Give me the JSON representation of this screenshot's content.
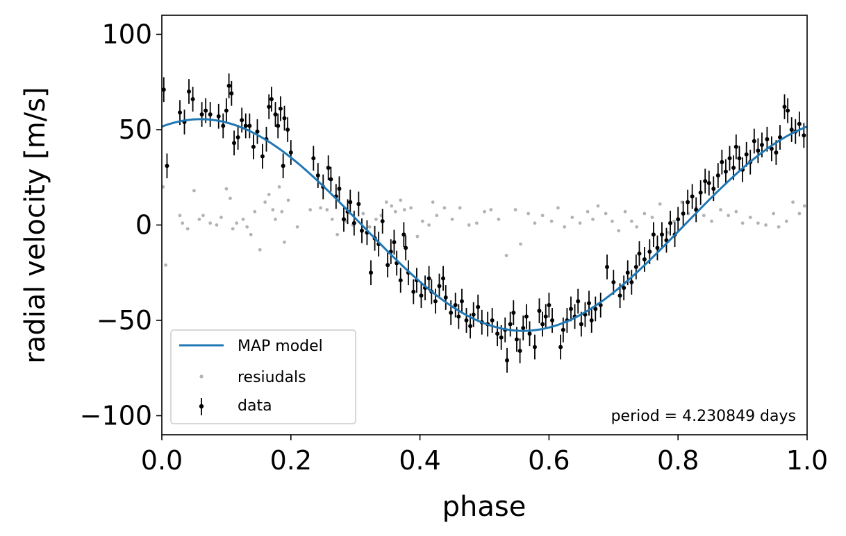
{
  "chart_data": {
    "type": "scatter",
    "xlabel": "phase",
    "ylabel": "radial velocity [m/s]",
    "xlim": [
      0.0,
      1.0
    ],
    "ylim": [
      -110,
      110
    ],
    "x_ticks": [
      0.0,
      0.2,
      0.4,
      0.6,
      0.8,
      1.0
    ],
    "x_tick_labels": [
      "0.0",
      "0.2",
      "0.4",
      "0.6",
      "0.8",
      "1.0"
    ],
    "y_ticks": [
      100,
      50,
      0,
      -50,
      -100
    ],
    "y_tick_labels": [
      "100",
      "50",
      "0",
      "−50",
      "−100"
    ],
    "grid": false,
    "legend_position": "lower-left",
    "annotation": "period = 4.230849 days",
    "model": {
      "name": "MAP model",
      "color": "#1f77b4",
      "amplitude": 55.5,
      "phase_of_max": 0.06
    },
    "series": [
      {
        "name": "data",
        "color": "#000000",
        "kind": "errorbar",
        "points": [
          [
            0.003,
            71.0
          ],
          [
            0.008,
            31.0
          ],
          [
            0.028,
            59.0
          ],
          [
            0.035,
            54.0
          ],
          [
            0.042,
            70.0
          ],
          [
            0.048,
            66.0
          ],
          [
            0.062,
            58.0
          ],
          [
            0.068,
            60.0
          ],
          [
            0.075,
            58.0
          ],
          [
            0.088,
            57.0
          ],
          [
            0.095,
            52.0
          ],
          [
            0.1,
            60.0
          ],
          [
            0.104,
            73.0
          ],
          [
            0.108,
            69.0
          ],
          [
            0.112,
            43.0
          ],
          [
            0.118,
            46.0
          ],
          [
            0.124,
            55.0
          ],
          [
            0.13,
            52.0
          ],
          [
            0.136,
            52.0
          ],
          [
            0.142,
            41.0
          ],
          [
            0.148,
            49.0
          ],
          [
            0.156,
            36.0
          ],
          [
            0.162,
            45.0
          ],
          [
            0.166,
            62.0
          ],
          [
            0.17,
            66.0
          ],
          [
            0.176,
            58.0
          ],
          [
            0.18,
            52.0
          ],
          [
            0.184,
            61.0
          ],
          [
            0.188,
            31.0
          ],
          [
            0.19,
            56.0
          ],
          [
            0.195,
            50.0
          ],
          [
            0.2,
            38.0
          ],
          [
            0.235,
            35.0
          ],
          [
            0.242,
            26.0
          ],
          [
            0.25,
            20.0
          ],
          [
            0.258,
            30.0
          ],
          [
            0.262,
            24.0
          ],
          [
            0.27,
            15.0
          ],
          [
            0.275,
            19.0
          ],
          [
            0.282,
            3.0
          ],
          [
            0.288,
            7.0
          ],
          [
            0.292,
            12.0
          ],
          [
            0.298,
            1.0
          ],
          [
            0.305,
            11.0
          ],
          [
            0.31,
            -3.0
          ],
          [
            0.318,
            -4.0
          ],
          [
            0.324,
            -25.0
          ],
          [
            0.33,
            -7.0
          ],
          [
            0.336,
            -10.0
          ],
          [
            0.342,
            2.0
          ],
          [
            0.35,
            -21.0
          ],
          [
            0.355,
            -14.0
          ],
          [
            0.36,
            -9.0
          ],
          [
            0.364,
            -20.0
          ],
          [
            0.37,
            -29.0
          ],
          [
            0.375,
            -5.0
          ],
          [
            0.378,
            -12.0
          ],
          [
            0.382,
            -25.0
          ],
          [
            0.39,
            -35.0
          ],
          [
            0.395,
            -29.0
          ],
          [
            0.402,
            -37.0
          ],
          [
            0.408,
            -33.0
          ],
          [
            0.414,
            -28.0
          ],
          [
            0.418,
            -35.0
          ],
          [
            0.424,
            -40.0
          ],
          [
            0.43,
            -32.0
          ],
          [
            0.436,
            -28.0
          ],
          [
            0.44,
            -38.0
          ],
          [
            0.448,
            -46.0
          ],
          [
            0.455,
            -42.0
          ],
          [
            0.46,
            -48.0
          ],
          [
            0.465,
            -40.0
          ],
          [
            0.472,
            -50.0
          ],
          [
            0.478,
            -53.0
          ],
          [
            0.483,
            -47.0
          ],
          [
            0.49,
            -43.0
          ],
          [
            0.496,
            -51.0
          ],
          [
            0.505,
            -52.0
          ],
          [
            0.512,
            -50.0
          ],
          [
            0.52,
            -57.0
          ],
          [
            0.526,
            -59.0
          ],
          [
            0.532,
            -55.0
          ],
          [
            0.535,
            -71.0
          ],
          [
            0.54,
            -52.0
          ],
          [
            0.545,
            -46.0
          ],
          [
            0.55,
            -60.0
          ],
          [
            0.555,
            -66.0
          ],
          [
            0.56,
            -54.0
          ],
          [
            0.565,
            -48.0
          ],
          [
            0.57,
            -57.0
          ],
          [
            0.578,
            -64.0
          ],
          [
            0.585,
            -45.0
          ],
          [
            0.59,
            -52.0
          ],
          [
            0.595,
            -48.0
          ],
          [
            0.6,
            -42.0
          ],
          [
            0.605,
            -50.0
          ],
          [
            0.618,
            -64.0
          ],
          [
            0.622,
            -55.0
          ],
          [
            0.628,
            -50.0
          ],
          [
            0.634,
            -44.0
          ],
          [
            0.64,
            -48.0
          ],
          [
            0.645,
            -40.0
          ],
          [
            0.65,
            -52.0
          ],
          [
            0.656,
            -47.0
          ],
          [
            0.662,
            -41.0
          ],
          [
            0.666,
            -50.0
          ],
          [
            0.672,
            -44.0
          ],
          [
            0.68,
            -42.0
          ],
          [
            0.69,
            -22.0
          ],
          [
            0.7,
            -30.0
          ],
          [
            0.71,
            -37.0
          ],
          [
            0.716,
            -33.0
          ],
          [
            0.722,
            -25.0
          ],
          [
            0.728,
            -30.0
          ],
          [
            0.735,
            -22.0
          ],
          [
            0.74,
            -15.0
          ],
          [
            0.748,
            -18.0
          ],
          [
            0.756,
            -14.0
          ],
          [
            0.762,
            -5.0
          ],
          [
            0.768,
            -12.0
          ],
          [
            0.775,
            -5.0
          ],
          [
            0.782,
            -8.0
          ],
          [
            0.788,
            1.0
          ],
          [
            0.795,
            -5.0
          ],
          [
            0.8,
            3.0
          ],
          [
            0.808,
            6.0
          ],
          [
            0.815,
            12.0
          ],
          [
            0.822,
            15.0
          ],
          [
            0.828,
            8.0
          ],
          [
            0.835,
            17.0
          ],
          [
            0.842,
            23.0
          ],
          [
            0.848,
            22.0
          ],
          [
            0.855,
            19.0
          ],
          [
            0.862,
            26.0
          ],
          [
            0.868,
            33.0
          ],
          [
            0.874,
            28.0
          ],
          [
            0.88,
            35.0
          ],
          [
            0.886,
            30.0
          ],
          [
            0.89,
            41.0
          ],
          [
            0.895,
            35.0
          ],
          [
            0.9,
            29.0
          ],
          [
            0.906,
            37.0
          ],
          [
            0.912,
            33.0
          ],
          [
            0.918,
            44.0
          ],
          [
            0.924,
            39.0
          ],
          [
            0.93,
            42.0
          ],
          [
            0.938,
            45.0
          ],
          [
            0.945,
            40.0
          ],
          [
            0.952,
            38.0
          ],
          [
            0.958,
            46.0
          ],
          [
            0.965,
            62.0
          ],
          [
            0.97,
            60.0
          ],
          [
            0.976,
            50.0
          ],
          [
            0.982,
            49.0
          ],
          [
            0.988,
            53.0
          ],
          [
            0.995,
            47.0
          ]
        ],
        "yerr": 6.5
      },
      {
        "name": "resiudals",
        "color": "#999999",
        "kind": "scatter",
        "points": [
          [
            0.002,
            20.0
          ],
          [
            0.006,
            -21.0
          ],
          [
            0.028,
            5.0
          ],
          [
            0.032,
            1.0
          ],
          [
            0.04,
            -2.0
          ],
          [
            0.05,
            18.0
          ],
          [
            0.058,
            3.0
          ],
          [
            0.064,
            5.0
          ],
          [
            0.075,
            1.0
          ],
          [
            0.085,
            0.0
          ],
          [
            0.092,
            4.0
          ],
          [
            0.1,
            19.0
          ],
          [
            0.106,
            14.0
          ],
          [
            0.11,
            -2.0
          ],
          [
            0.116,
            1.0
          ],
          [
            0.126,
            3.0
          ],
          [
            0.132,
            -1.0
          ],
          [
            0.138,
            -5.0
          ],
          [
            0.144,
            7.0
          ],
          [
            0.152,
            -13.0
          ],
          [
            0.16,
            12.0
          ],
          [
            0.166,
            16.0
          ],
          [
            0.172,
            8.0
          ],
          [
            0.176,
            3.0
          ],
          [
            0.182,
            20.0
          ],
          [
            0.186,
            7.0
          ],
          [
            0.19,
            -9.0
          ],
          [
            0.196,
            13.0
          ],
          [
            0.21,
            -1.0
          ],
          [
            0.23,
            8.0
          ],
          [
            0.246,
            9.0
          ],
          [
            0.256,
            8.0
          ],
          [
            0.264,
            3.0
          ],
          [
            0.272,
            -5.0
          ],
          [
            0.286,
            2.0
          ],
          [
            0.296,
            0.0
          ],
          [
            0.312,
            6.0
          ],
          [
            0.322,
            -1.0
          ],
          [
            0.332,
            3.0
          ],
          [
            0.34,
            5.0
          ],
          [
            0.348,
            12.0
          ],
          [
            0.356,
            10.0
          ],
          [
            0.362,
            7.0
          ],
          [
            0.37,
            13.0
          ],
          [
            0.376,
            8.0
          ],
          [
            0.386,
            9.0
          ],
          [
            0.396,
            -6.0
          ],
          [
            0.404,
            2.0
          ],
          [
            0.414,
            0.0
          ],
          [
            0.42,
            12.0
          ],
          [
            0.426,
            5.0
          ],
          [
            0.438,
            9.0
          ],
          [
            0.45,
            3.0
          ],
          [
            0.462,
            9.0
          ],
          [
            0.476,
            0.0
          ],
          [
            0.488,
            1.0
          ],
          [
            0.5,
            7.0
          ],
          [
            0.51,
            8.0
          ],
          [
            0.522,
            3.0
          ],
          [
            0.534,
            -16.0
          ],
          [
            0.548,
            8.0
          ],
          [
            0.556,
            -10.0
          ],
          [
            0.568,
            6.0
          ],
          [
            0.578,
            1.0
          ],
          [
            0.59,
            5.0
          ],
          [
            0.604,
            2.0
          ],
          [
            0.614,
            9.0
          ],
          [
            0.624,
            -1.0
          ],
          [
            0.636,
            4.0
          ],
          [
            0.648,
            1.0
          ],
          [
            0.66,
            7.0
          ],
          [
            0.668,
            3.0
          ],
          [
            0.676,
            10.0
          ],
          [
            0.688,
            6.0
          ],
          [
            0.698,
            2.0
          ],
          [
            0.708,
            -3.0
          ],
          [
            0.718,
            7.0
          ],
          [
            0.728,
            2.0
          ],
          [
            0.736,
            -1.0
          ],
          [
            0.748,
            6.0
          ],
          [
            0.76,
            4.0
          ],
          [
            0.772,
            11.0
          ],
          [
            0.784,
            -4.0
          ],
          [
            0.794,
            2.0
          ],
          [
            0.806,
            12.0
          ],
          [
            0.816,
            6.0
          ],
          [
            0.828,
            9.0
          ],
          [
            0.84,
            5.0
          ],
          [
            0.852,
            2.0
          ],
          [
            0.866,
            8.0
          ],
          [
            0.878,
            5.0
          ],
          [
            0.89,
            7.0
          ],
          [
            0.9,
            1.0
          ],
          [
            0.912,
            4.0
          ],
          [
            0.924,
            1.0
          ],
          [
            0.936,
            0.0
          ],
          [
            0.948,
            6.0
          ],
          [
            0.956,
            -1.0
          ],
          [
            0.968,
            2.0
          ],
          [
            0.978,
            12.0
          ],
          [
            0.988,
            6.0
          ],
          [
            0.996,
            10.0
          ]
        ]
      }
    ]
  }
}
